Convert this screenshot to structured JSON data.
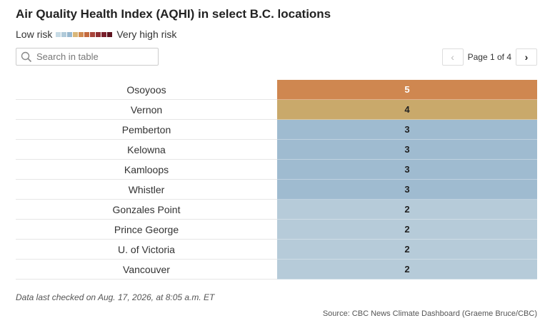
{
  "title": "Air Quality Health Index (AQHI) in select B.C. locations",
  "legend": {
    "low_label": "Low risk",
    "high_label": "Very high risk",
    "colors": [
      "#c7dbe5",
      "#b0cad9",
      "#98b8cf",
      "#d9b77a",
      "#d08a50",
      "#c46a3e",
      "#a8443a",
      "#8f2f33",
      "#7a1f2b",
      "#5e1420"
    ]
  },
  "search": {
    "placeholder": "Search in table"
  },
  "pager": {
    "label": "Page 1 of 4"
  },
  "chart_data": {
    "type": "table",
    "rows": [
      {
        "location": "Osoyoos",
        "aqhi": "5",
        "color": "#cf8750",
        "text_color": "#ffffff"
      },
      {
        "location": "Vernon",
        "aqhi": "4",
        "color": "#c9a96b",
        "text_color": "#222222"
      },
      {
        "location": "Pemberton",
        "aqhi": "3",
        "color": "#9fbbd0",
        "text_color": "#222222"
      },
      {
        "location": "Kelowna",
        "aqhi": "3",
        "color": "#9fbbd0",
        "text_color": "#222222"
      },
      {
        "location": "Kamloops",
        "aqhi": "3",
        "color": "#9fbbd0",
        "text_color": "#222222"
      },
      {
        "location": "Whistler",
        "aqhi": "3",
        "color": "#9fbbd0",
        "text_color": "#222222"
      },
      {
        "location": "Gonzales Point",
        "aqhi": "2",
        "color": "#b6cbd9",
        "text_color": "#222222"
      },
      {
        "location": "Prince George",
        "aqhi": "2",
        "color": "#b6cbd9",
        "text_color": "#222222"
      },
      {
        "location": "U. of Victoria",
        "aqhi": "2",
        "color": "#b6cbd9",
        "text_color": "#222222"
      },
      {
        "location": "Vancouver",
        "aqhi": "2",
        "color": "#b6cbd9",
        "text_color": "#222222"
      }
    ]
  },
  "footer": {
    "note": "Data last checked on Aug. 17, 2026, at 8:05 a.m. ET",
    "source": "Source: CBC News Climate Dashboard (Graeme Bruce/CBC)"
  }
}
